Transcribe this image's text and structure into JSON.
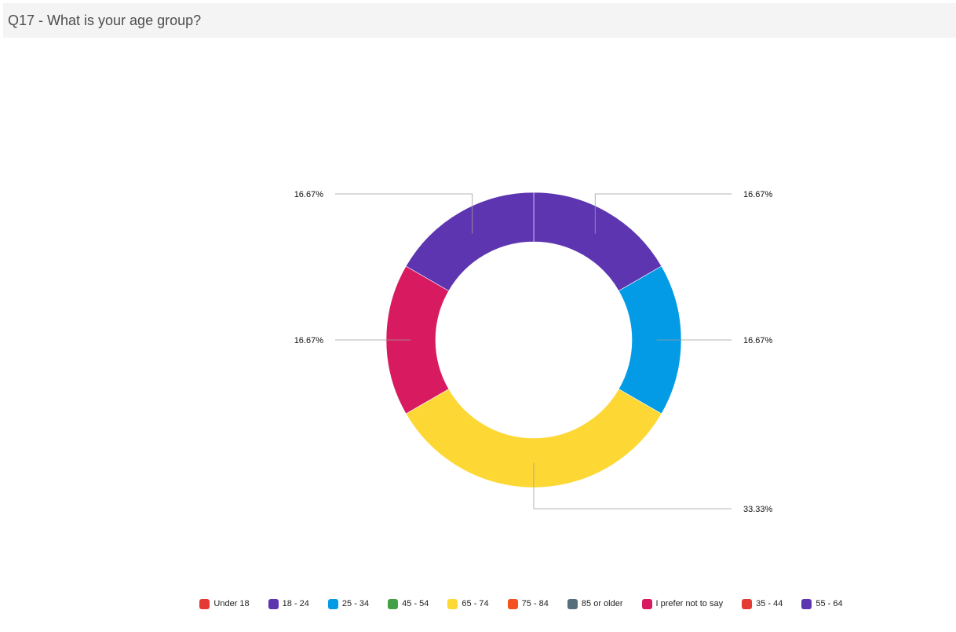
{
  "title": "Q17 - What is your age group?",
  "chart_data": {
    "type": "pie",
    "donut": true,
    "title": "Q17 - What is your age group?",
    "slices": [
      {
        "label": "18 - 24",
        "value": 16.67,
        "display": "16.67%",
        "color": "#5e35b1"
      },
      {
        "label": "25 - 34",
        "value": 16.67,
        "display": "16.67%",
        "color": "#039be5"
      },
      {
        "label": "65 - 74",
        "value": 33.33,
        "display": "33.33%",
        "color": "#fdd835"
      },
      {
        "label": "I prefer not to say",
        "value": 16.67,
        "display": "16.67%",
        "color": "#d81b60"
      },
      {
        "label": "55 - 64",
        "value": 16.67,
        "display": "16.67%",
        "color": "#5e35b1"
      }
    ],
    "legend": [
      {
        "label": "Under 18",
        "color": "#e53935"
      },
      {
        "label": "18 - 24",
        "color": "#5e35b1"
      },
      {
        "label": "25 - 34",
        "color": "#039be5"
      },
      {
        "label": "45 - 54",
        "color": "#43a047"
      },
      {
        "label": "65 - 74",
        "color": "#fdd835"
      },
      {
        "label": "75 - 84",
        "color": "#f4511e"
      },
      {
        "label": "85 or older",
        "color": "#546e7a"
      },
      {
        "label": "I prefer not to say",
        "color": "#d81b60"
      },
      {
        "label": "35 - 44",
        "color": "#e53935"
      },
      {
        "label": "55 - 64",
        "color": "#5e35b1"
      }
    ],
    "legend_position": "bottom"
  }
}
